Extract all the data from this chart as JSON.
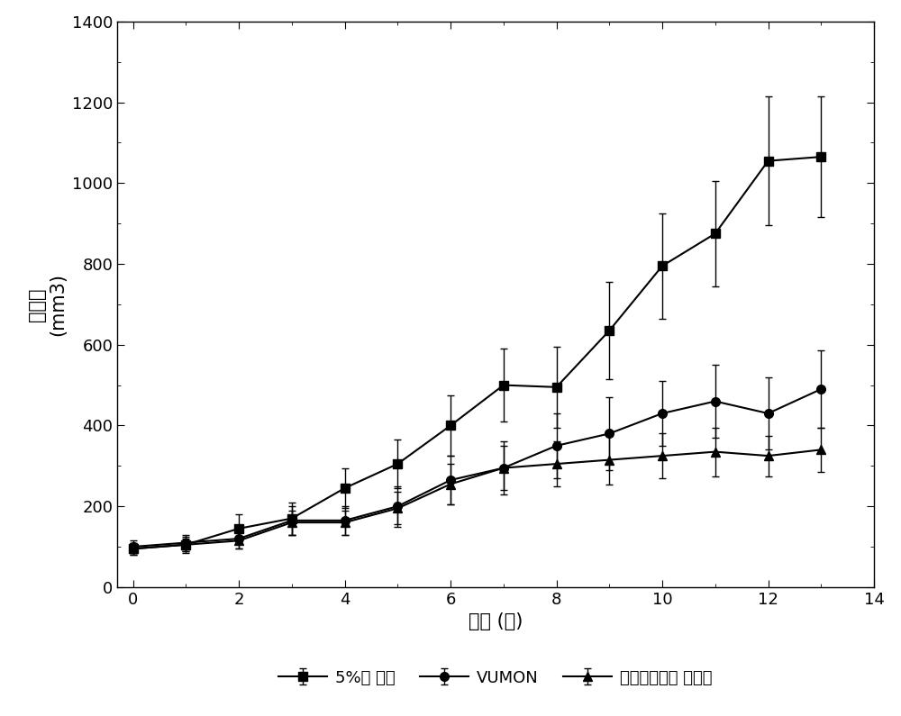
{
  "x": [
    0,
    1,
    2,
    3,
    4,
    5,
    6,
    7,
    8,
    9,
    10,
    11,
    12,
    13
  ],
  "glucose_y": [
    95,
    105,
    145,
    170,
    245,
    305,
    400,
    500,
    495,
    635,
    795,
    875,
    1055,
    1065
  ],
  "glucose_err": [
    15,
    20,
    35,
    40,
    50,
    60,
    75,
    90,
    100,
    120,
    130,
    130,
    160,
    150
  ],
  "vumon_y": [
    100,
    110,
    120,
    165,
    165,
    200,
    265,
    295,
    350,
    380,
    430,
    460,
    430,
    490
  ],
  "vumon_err": [
    15,
    20,
    25,
    35,
    35,
    50,
    60,
    65,
    80,
    90,
    80,
    90,
    90,
    95
  ],
  "nano_y": [
    95,
    105,
    115,
    160,
    160,
    195,
    255,
    295,
    305,
    315,
    325,
    335,
    325,
    340
  ],
  "nano_err": [
    15,
    15,
    20,
    30,
    30,
    40,
    50,
    55,
    55,
    60,
    55,
    60,
    50,
    55
  ],
  "xlabel": "时间 (天)",
  "ylabel": "瘾体积（mm3）",
  "ylabel_line1": "瘾体积",
  "ylabel_line2": "(mm3)",
  "xlim": [
    -0.3,
    14
  ],
  "ylim": [
    0,
    1400
  ],
  "xticks": [
    0,
    2,
    4,
    6,
    8,
    10,
    12,
    14
  ],
  "yticks": [
    0,
    200,
    400,
    600,
    800,
    1000,
    1200,
    1400
  ],
  "legend_label_glucose": "5%葡 葡糖",
  "legend_label_vumon": "VUMON",
  "legend_label_nano": "替尼泊苷纳米 混悬剂",
  "line_color": "#000000",
  "background_color": "#ffffff",
  "fontsize_axis": 15,
  "fontsize_tick": 13,
  "fontsize_legend": 13
}
